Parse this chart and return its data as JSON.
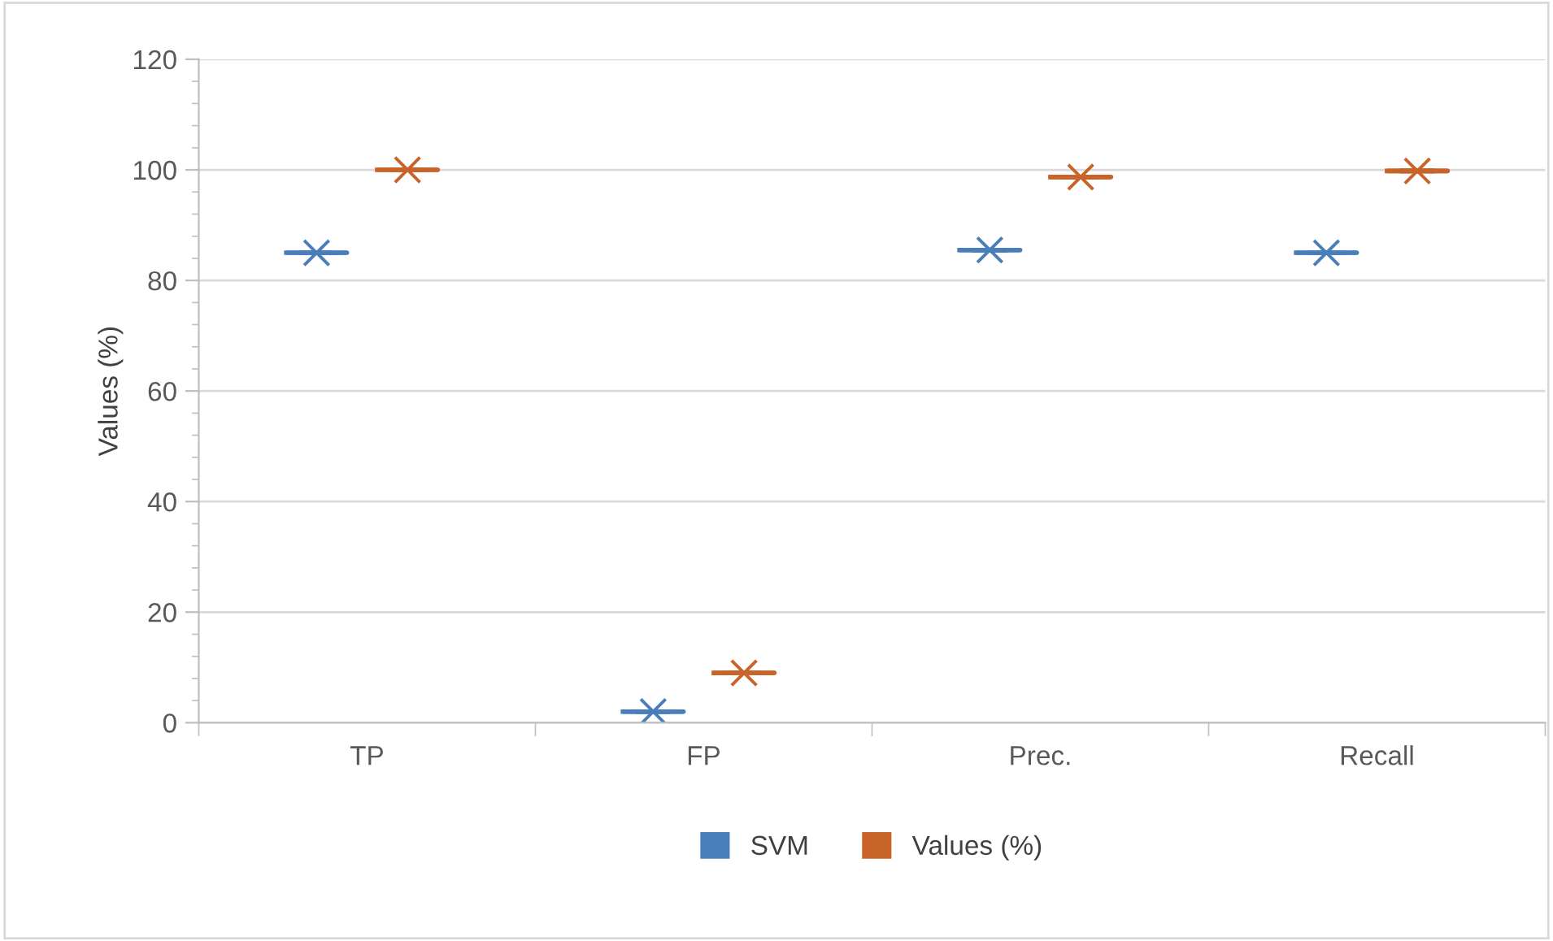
{
  "chart_data": {
    "type": "box",
    "ylabel": "Values (%)",
    "categories": [
      "TP",
      "FP",
      "Prec.",
      "Recall"
    ],
    "series": [
      {
        "name": "SVM",
        "color": "#4a7ebb",
        "boxes": [
          {
            "low": 85,
            "q1": 85,
            "median": 85,
            "q3": 85,
            "high": 85,
            "mean": 85
          },
          {
            "low": 2,
            "q1": 2,
            "median": 2,
            "q3": 2,
            "high": 2,
            "mean": 2
          },
          {
            "low": 85.5,
            "q1": 85.5,
            "median": 85.5,
            "q3": 85.5,
            "high": 85.5,
            "mean": 85.5
          },
          {
            "low": 85,
            "q1": 85,
            "median": 85,
            "q3": 85,
            "high": 85,
            "mean": 85
          }
        ]
      },
      {
        "name": "Values (%)",
        "color": "#c8642a",
        "boxes": [
          {
            "low": 100,
            "q1": 100,
            "median": 100,
            "q3": 100,
            "high": 100,
            "mean": 100
          },
          {
            "low": 9,
            "q1": 9,
            "median": 9,
            "q3": 9,
            "high": 9,
            "mean": 9
          },
          {
            "low": 98.7,
            "q1": 98.7,
            "median": 98.7,
            "q3": 98.7,
            "high": 98.7,
            "mean": 98.7
          },
          {
            "low": 99.8,
            "q1": 99.8,
            "median": 99.8,
            "q3": 99.8,
            "high": 99.8,
            "mean": 99.8
          }
        ]
      }
    ],
    "ylim": [
      0,
      120
    ],
    "yticks": [
      0,
      20,
      40,
      60,
      80,
      100,
      120
    ],
    "grid": "y",
    "legend": "bottom",
    "marker": "cross"
  }
}
